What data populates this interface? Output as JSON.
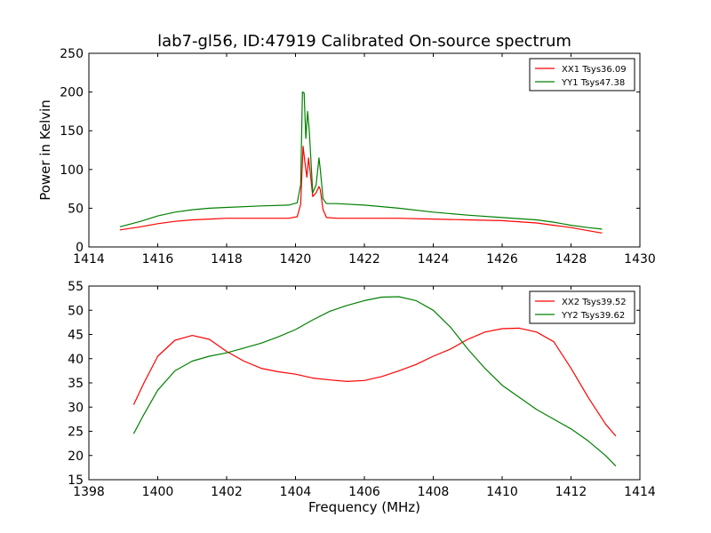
{
  "title": "lab7-gl56, ID:47919 Calibrated On-source spectrum",
  "chart_data": [
    {
      "type": "line",
      "ylabel": "Power in Kelvin",
      "xlabel": "",
      "xlim": [
        1414,
        1430
      ],
      "ylim": [
        0,
        250
      ],
      "xticks": [
        1414,
        1416,
        1418,
        1420,
        1422,
        1424,
        1426,
        1428,
        1430
      ],
      "yticks": [
        0,
        50,
        100,
        150,
        200,
        250
      ],
      "legend_position": "top-right",
      "series": [
        {
          "name": "XX1 Tsys36.09",
          "color": "#ff0000",
          "x": [
            1414.9,
            1415.5,
            1416.0,
            1416.5,
            1417.0,
            1417.5,
            1418.0,
            1419.0,
            1419.8,
            1420.05,
            1420.15,
            1420.22,
            1420.27,
            1420.33,
            1420.38,
            1420.43,
            1420.5,
            1420.6,
            1420.68,
            1420.72,
            1420.8,
            1420.9,
            1421.2,
            1422.0,
            1423.0,
            1424.0,
            1425.0,
            1426.0,
            1427.0,
            1427.5,
            1428.0,
            1428.5,
            1428.9
          ],
          "y": [
            22,
            26,
            30,
            33,
            35,
            36,
            37,
            37,
            37,
            39,
            55,
            130,
            110,
            90,
            115,
            95,
            65,
            70,
            78,
            74,
            48,
            38,
            37,
            37,
            37,
            36,
            35,
            34,
            31,
            28,
            25,
            21,
            18
          ]
        },
        {
          "name": "YY1 Tsys47.38",
          "color": "#008000",
          "x": [
            1414.9,
            1415.5,
            1416.0,
            1416.5,
            1417.0,
            1417.5,
            1418.0,
            1419.0,
            1419.8,
            1420.05,
            1420.15,
            1420.2,
            1420.25,
            1420.3,
            1420.35,
            1420.4,
            1420.5,
            1420.6,
            1420.68,
            1420.72,
            1420.8,
            1420.9,
            1421.2,
            1422.0,
            1423.0,
            1424.0,
            1425.0,
            1426.0,
            1427.0,
            1427.5,
            1428.0,
            1428.5,
            1428.9
          ],
          "y": [
            26,
            33,
            40,
            45,
            48,
            50,
            51,
            53,
            54,
            57,
            80,
            200,
            199,
            140,
            175,
            150,
            70,
            80,
            115,
            100,
            62,
            56,
            56,
            54,
            50,
            45,
            41,
            38,
            35,
            32,
            28,
            25,
            23
          ]
        }
      ]
    },
    {
      "type": "line",
      "ylabel": "",
      "xlabel": "Frequency (MHz)",
      "xlim": [
        1398,
        1414
      ],
      "ylim": [
        15,
        55
      ],
      "xticks": [
        1398,
        1400,
        1402,
        1404,
        1406,
        1408,
        1410,
        1412,
        1414
      ],
      "yticks": [
        15,
        20,
        25,
        30,
        35,
        40,
        45,
        50,
        55
      ],
      "legend_position": "top-right",
      "series": [
        {
          "name": "XX2 Tsys39.52",
          "color": "#ff0000",
          "x": [
            1399.3,
            1399.6,
            1400.0,
            1400.5,
            1401.0,
            1401.5,
            1402.0,
            1402.5,
            1403.0,
            1403.5,
            1404.0,
            1404.5,
            1405.0,
            1405.5,
            1406.0,
            1406.5,
            1407.0,
            1407.5,
            1408.0,
            1408.5,
            1409.0,
            1409.5,
            1410.0,
            1410.5,
            1411.0,
            1411.5,
            1412.0,
            1412.5,
            1413.0,
            1413.3
          ],
          "y": [
            30.5,
            35,
            40.5,
            43.8,
            44.8,
            44,
            41.5,
            39.5,
            38,
            37.3,
            36.8,
            36,
            35.6,
            35.3,
            35.5,
            36.3,
            37.5,
            38.8,
            40.5,
            42,
            44,
            45.5,
            46.2,
            46.3,
            45.5,
            43.5,
            38,
            32,
            26.5,
            24
          ]
        },
        {
          "name": "YY2 Tsys39.62",
          "color": "#008000",
          "x": [
            1399.3,
            1399.6,
            1400.0,
            1400.5,
            1401.0,
            1401.5,
            1402.0,
            1402.5,
            1403.0,
            1403.5,
            1404.0,
            1404.5,
            1405.0,
            1405.5,
            1406.0,
            1406.5,
            1407.0,
            1407.5,
            1408.0,
            1408.5,
            1409.0,
            1409.5,
            1410.0,
            1410.5,
            1411.0,
            1411.5,
            1412.0,
            1412.5,
            1413.0,
            1413.3
          ],
          "y": [
            24.5,
            28.5,
            33.5,
            37.5,
            39.5,
            40.5,
            41.2,
            42.2,
            43.2,
            44.5,
            46,
            48,
            49.8,
            51,
            52,
            52.7,
            52.8,
            52,
            50,
            46.5,
            42,
            38,
            34.5,
            32,
            29.5,
            27.5,
            25.5,
            23,
            20,
            17.8
          ]
        }
      ]
    }
  ]
}
